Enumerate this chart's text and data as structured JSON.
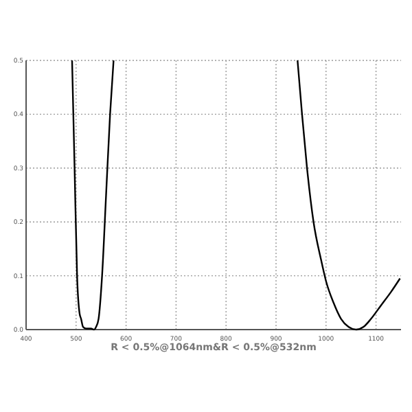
{
  "chart_data": {
    "type": "line",
    "xlabel": "R < 0.5%@1064nm&R < 0.5%@532nm",
    "xlim": [
      400,
      1150
    ],
    "xticks": [
      400,
      500,
      600,
      700,
      800,
      900,
      1000,
      1100
    ],
    "ylim": [
      0,
      0.5
    ],
    "yticks": [
      {
        "value": 0,
        "label": "0.0"
      },
      {
        "value": 0.1,
        "label": "0.1"
      },
      {
        "value": 0.2,
        "label": "0.2"
      },
      {
        "value": 0.3,
        "label": "0.3"
      },
      {
        "value": 0.4,
        "label": "0.4"
      },
      {
        "value": 0.5,
        "label": "0.5"
      }
    ],
    "grid": true,
    "line_style": "solid",
    "series": [
      {
        "color": "#000000",
        "x": [
          492,
          497,
          502,
          507,
          510,
          514,
          520,
          530,
          536,
          540,
          545,
          552,
          560,
          568,
          575
        ],
        "values": [
          0.5,
          0.3,
          0.1,
          0.03,
          0.02,
          0.005,
          0.002,
          0.002,
          0,
          0.005,
          0.02,
          0.1,
          0.25,
          0.4,
          0.5
        ]
      },
      {
        "color": "#000000",
        "x": [
          943,
          952,
          962,
          975,
          990,
          1000,
          1015,
          1030,
          1045,
          1060,
          1075,
          1090,
          1110,
          1130,
          1148
        ],
        "values": [
          0.5,
          0.4,
          0.3,
          0.2,
          0.13,
          0.09,
          0.05,
          0.02,
          0.005,
          0,
          0.005,
          0.02,
          0.045,
          0.07,
          0.095
        ]
      }
    ]
  }
}
